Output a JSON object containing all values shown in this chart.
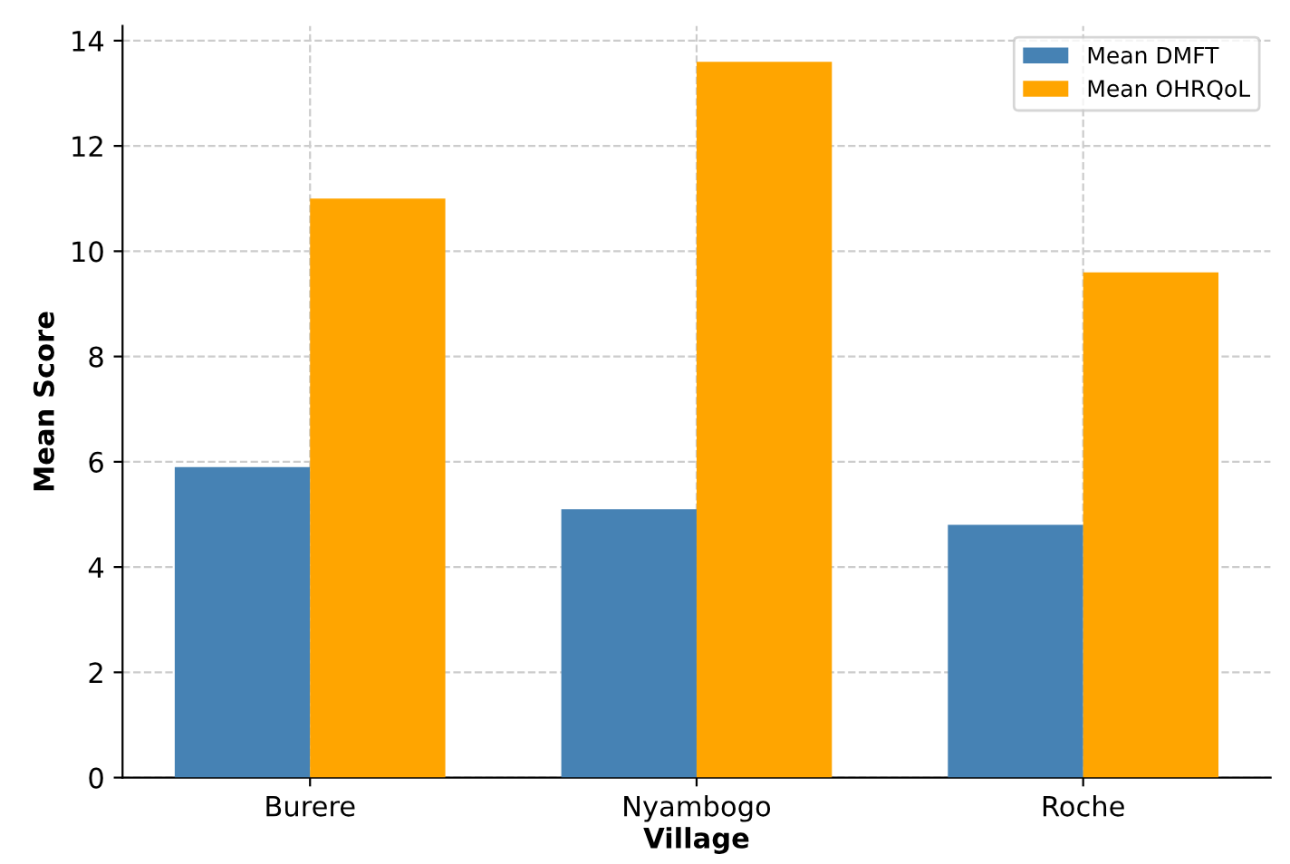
{
  "chart_data": {
    "type": "bar",
    "xlabel": "Village",
    "ylabel": "Mean Score",
    "categories": [
      "Burere",
      "Nyambogo",
      "Roche"
    ],
    "series": [
      {
        "name": "Mean DMFT",
        "color": "#4682b4",
        "values": [
          5.9,
          5.1,
          4.8
        ]
      },
      {
        "name": "Mean OHRQoL",
        "color": "#ffa500",
        "values": [
          11.0,
          13.6,
          9.6
        ]
      }
    ],
    "ylim": [
      0,
      14.28
    ],
    "yticks": [
      0,
      2,
      4,
      6,
      8,
      10,
      12,
      14
    ],
    "grid": true,
    "legend": "top right"
  }
}
